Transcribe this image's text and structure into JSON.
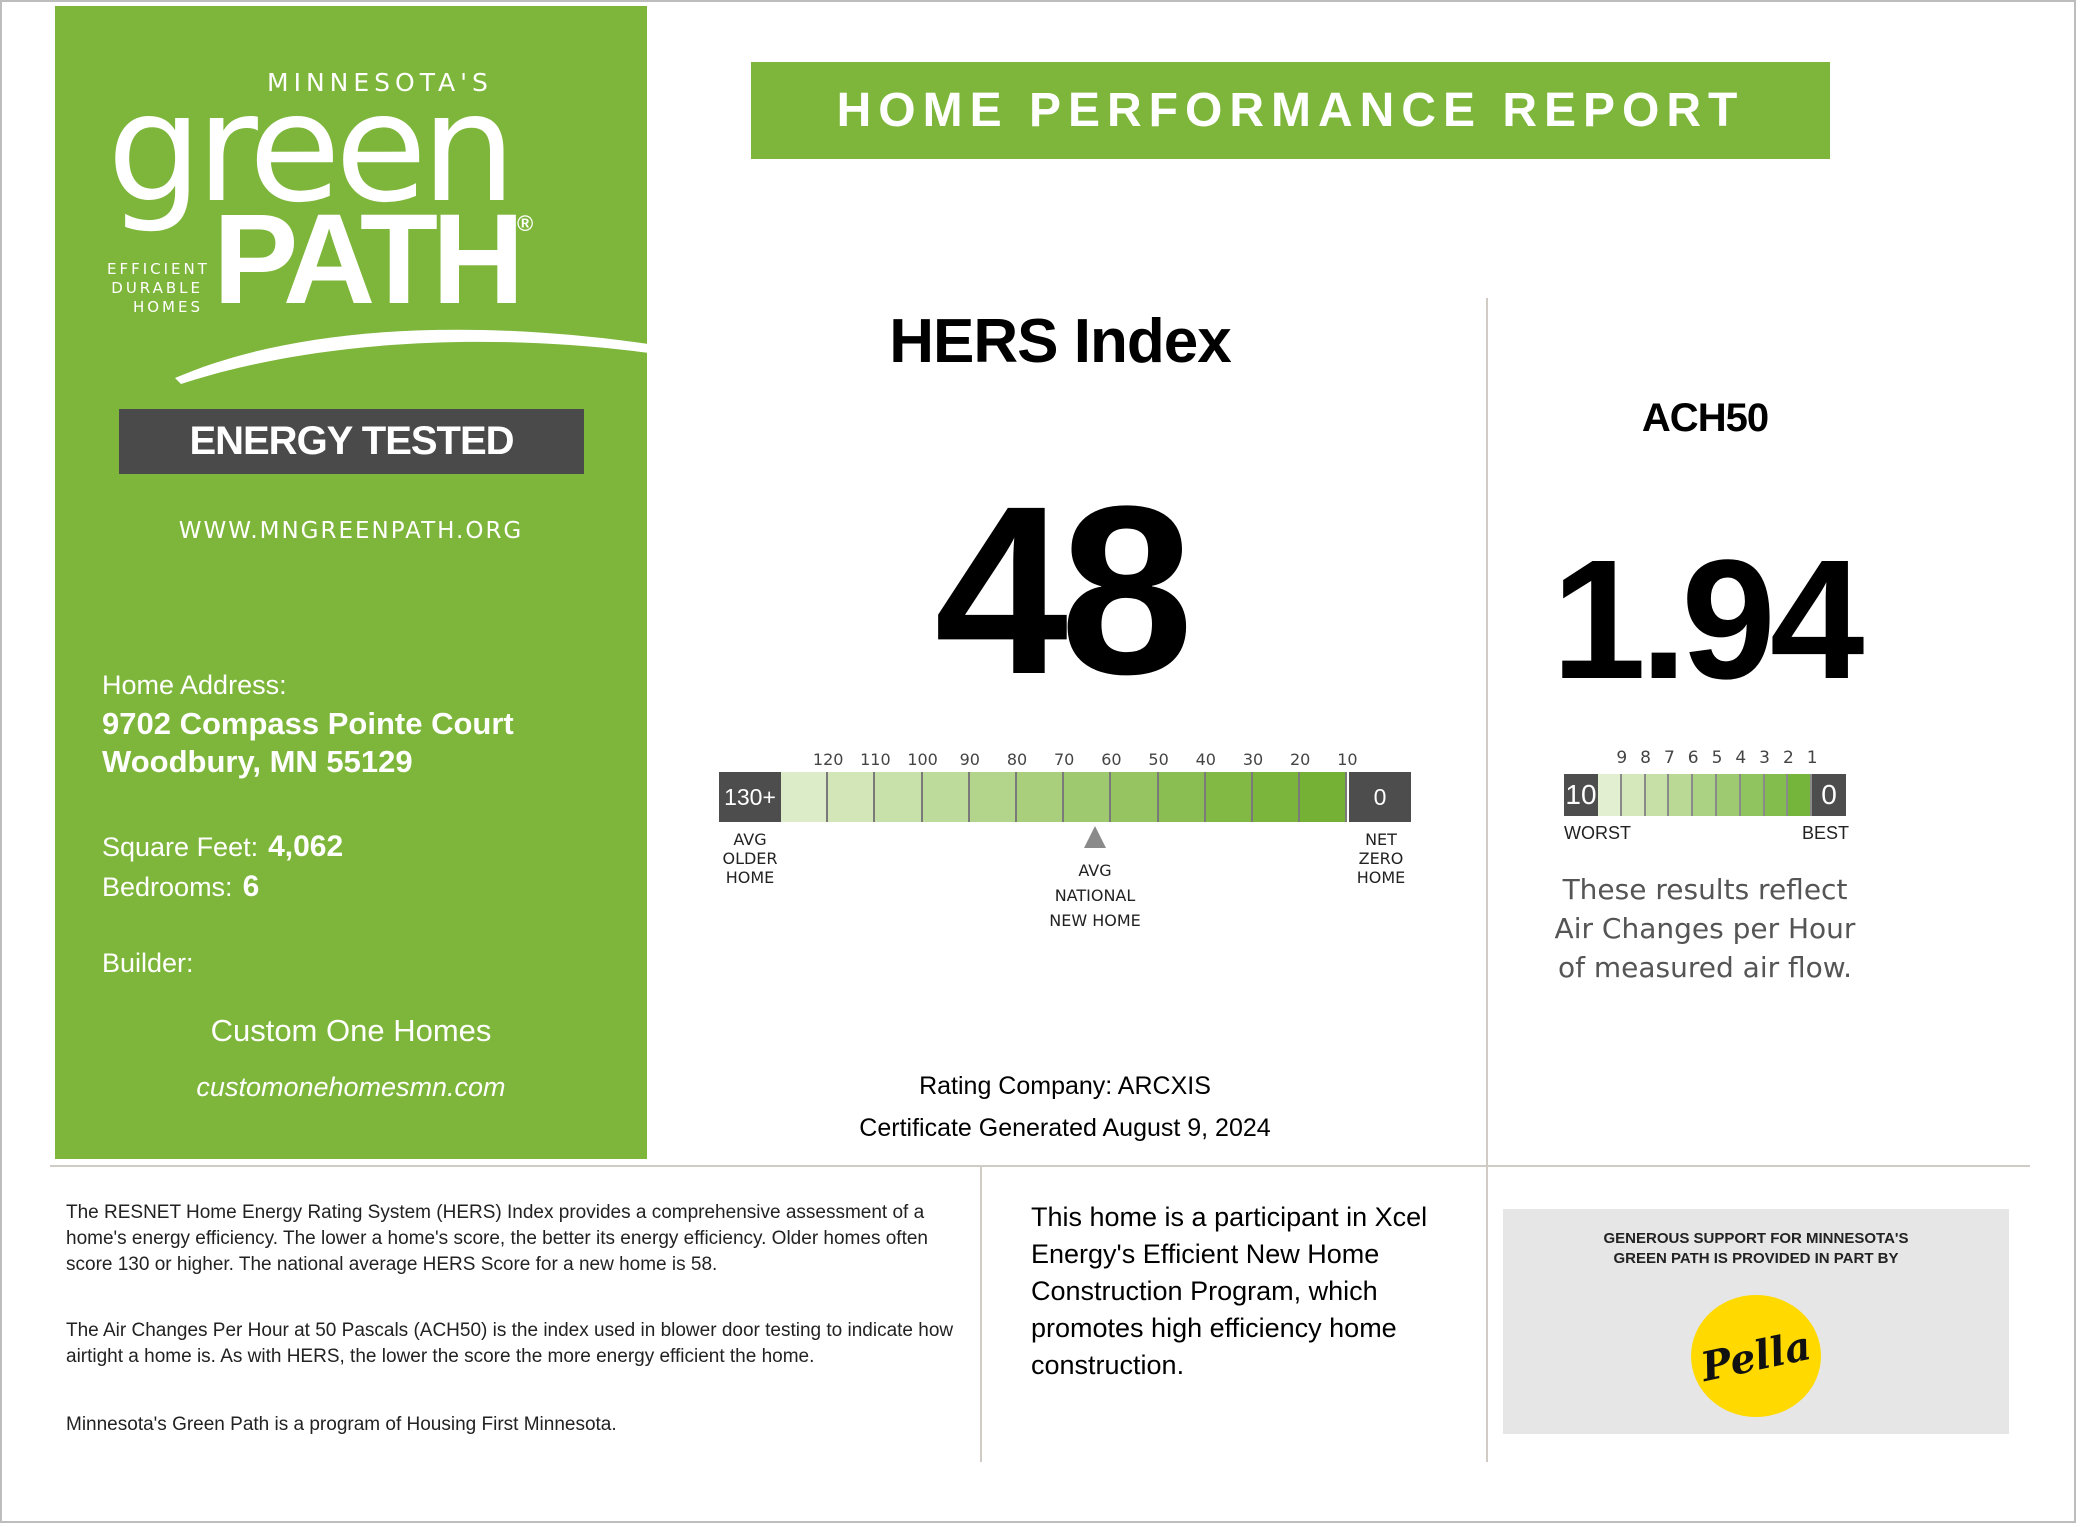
{
  "brand": {
    "pre": "MINNESOTA'S",
    "green": "green",
    "path": "PATH",
    "registered": "®",
    "tagline": [
      "EFFICIENT",
      "DURABLE",
      "HOMES"
    ],
    "badge": "ENERGY TESTED",
    "website": "WWW.MNGREENPATH.ORG"
  },
  "home": {
    "address_label": "Home Address:",
    "address_line1": "9702 Compass Pointe Court",
    "address_line2": "Woodbury, MN 55129",
    "sqft_label": "Square Feet:",
    "sqft_value": "4,062",
    "bedrooms_label": "Bedrooms:",
    "bedrooms_value": "6",
    "builder_label": "Builder:",
    "builder_name": "Custom One Homes",
    "builder_url": "customonehomesmn.com"
  },
  "header": {
    "title": "HOME PERFORMANCE REPORT"
  },
  "hers": {
    "title": "HERS Index",
    "score": "48",
    "scale_start": "130+",
    "scale_end": "0",
    "ticks": [
      "120",
      "110",
      "100",
      "90",
      "80",
      "70",
      "60",
      "50",
      "40",
      "30",
      "20",
      "10"
    ],
    "older_home": [
      "AVG",
      "OLDER",
      "HOME"
    ],
    "national": [
      "AVG",
      "NATIONAL",
      "NEW HOME"
    ],
    "net_zero": [
      "NET",
      "ZERO",
      "HOME"
    ],
    "rating_company": "Rating Company: ARCXIS",
    "certificate": "Certificate Generated August 9, 2024",
    "colors": [
      "#ddecc8",
      "#d2e6b8",
      "#c8e0a9",
      "#bddb9a",
      "#b3d58b",
      "#a9cf7c",
      "#9fc96e",
      "#95c460",
      "#8bbe52",
      "#82b945",
      "#7bb53c",
      "#74b134"
    ]
  },
  "ach": {
    "title": "ACH50",
    "score": "1.94",
    "scale_start": "10",
    "scale_end": "0",
    "ticks": [
      "9",
      "8",
      "7",
      "6",
      "5",
      "4",
      "3",
      "2",
      "1"
    ],
    "worst": "WORST",
    "best": "BEST",
    "note": [
      "These results reflect",
      "Air Changes per Hour",
      "of measured air flow."
    ],
    "colors": [
      "#e2efd0",
      "#d4e8bb",
      "#c7e0a8",
      "#b9d995",
      "#abd283",
      "#9ecb71",
      "#90c45f",
      "#83bd4d",
      "#76b53c"
    ]
  },
  "bottom": {
    "info_p1": "The RESNET Home Energy Rating System (HERS) Index provides a comprehensive assessment of a home's energy efficiency. The lower a home's score, the better its energy efficiency. Older homes often score 130 or higher. The national average HERS Score for a new home is 58.",
    "info_p2": "The Air Changes Per Hour at 50 Pascals (ACH50) is the index used in blower door testing to indicate how airtight a home is. As with HERS, the lower the score the more energy efficient the home.",
    "info_p3": "Minnesota's Green Path is a program of Housing First Minnesota.",
    "xcel": "This home is a participant in Xcel Energy's Efficient New Home Construction Program, which promotes high efficiency home construction.",
    "sponsor_line1": "GENEROUS SUPPORT FOR MINNESOTA'S",
    "sponsor_line2": "GREEN PATH IS PROVIDED IN PART BY",
    "sponsor_logo": "Pella"
  }
}
